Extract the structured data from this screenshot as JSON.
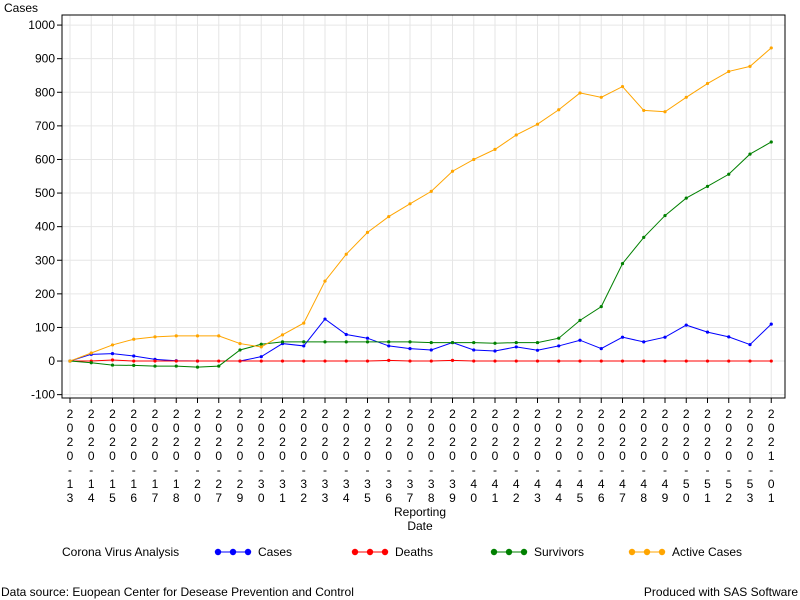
{
  "footer": {
    "source": "Data source: Euopean Center for Desease Prevention and Control",
    "produced": "Produced with SAS Software"
  },
  "chart_data": {
    "type": "line",
    "ylabel": "Cases",
    "xlabel": "Reporting Date",
    "ylim": [
      -100,
      1000
    ],
    "yticks": [
      -100,
      0,
      100,
      200,
      300,
      400,
      500,
      600,
      700,
      800,
      900,
      1000
    ],
    "grid": true,
    "legend_title": "Corona Virus Analysis",
    "legend_position": "bottom",
    "categories": [
      "2020-1-13",
      "2020-1-14",
      "2020-1-15",
      "2020-1-16",
      "2020-1-17",
      "2020-1-18",
      "2020-2-0",
      "2020-2-7",
      "2020-2-9",
      "2020-3-0",
      "2020-3-1",
      "2020-3-2",
      "2020-3-3",
      "2020-3-4",
      "2020-3-5",
      "2020-3-6",
      "2020-3-7",
      "2020-3-8",
      "2020-3-9",
      "2020-4-0",
      "2020-4-1",
      "2020-4-2",
      "2020-4-3",
      "2020-4-4",
      "2020-4-5",
      "2020-4-6",
      "2020-4-7",
      "2020-4-8",
      "2020-4-9",
      "2020-5-0",
      "2020-5-1",
      "2020-5-2",
      "2020-5-3",
      "2021-0-1"
    ],
    "tick_rows": [
      [
        "2",
        "2",
        "2",
        "2",
        "2",
        "2",
        "2",
        "2",
        "2",
        "2",
        "2",
        "2",
        "2",
        "2",
        "2",
        "2",
        "2",
        "2",
        "2",
        "2",
        "2",
        "2",
        "2",
        "2",
        "2",
        "2",
        "2",
        "2",
        "2",
        "2",
        "2",
        "2",
        "2",
        "2"
      ],
      [
        "0",
        "0",
        "0",
        "0",
        "0",
        "0",
        "0",
        "0",
        "0",
        "0",
        "0",
        "0",
        "0",
        "0",
        "0",
        "0",
        "0",
        "0",
        "0",
        "0",
        "0",
        "0",
        "0",
        "0",
        "0",
        "0",
        "0",
        "0",
        "0",
        "0",
        "0",
        "0",
        "0",
        "0"
      ],
      [
        "2",
        "2",
        "2",
        "2",
        "2",
        "2",
        "2",
        "2",
        "2",
        "2",
        "2",
        "2",
        "2",
        "2",
        "2",
        "2",
        "2",
        "2",
        "2",
        "2",
        "2",
        "2",
        "2",
        "2",
        "2",
        "2",
        "2",
        "2",
        "2",
        "2",
        "2",
        "2",
        "2",
        "2"
      ],
      [
        "0",
        "0",
        "0",
        "0",
        "0",
        "0",
        "0",
        "0",
        "0",
        "0",
        "0",
        "0",
        "0",
        "0",
        "0",
        "0",
        "0",
        "0",
        "0",
        "0",
        "0",
        "0",
        "0",
        "0",
        "0",
        "0",
        "0",
        "0",
        "0",
        "0",
        "0",
        "0",
        "0",
        "1"
      ],
      [
        "-",
        "-",
        "-",
        "-",
        "-",
        "-",
        "-",
        "-",
        "-",
        "-",
        "-",
        "-",
        "-",
        "-",
        "-",
        "-",
        "-",
        "-",
        "-",
        "-",
        "-",
        "-",
        "-",
        "-",
        "-",
        "-",
        "-",
        "-",
        "-",
        "-",
        "-",
        "-",
        "-",
        "-"
      ],
      [
        "1",
        "1",
        "1",
        "1",
        "1",
        "1",
        "2",
        "2",
        "2",
        "3",
        "3",
        "3",
        "3",
        "3",
        "3",
        "3",
        "3",
        "3",
        "3",
        "4",
        "4",
        "4",
        "4",
        "4",
        "4",
        "4",
        "4",
        "4",
        "4",
        "5",
        "5",
        "5",
        "5",
        "0"
      ],
      [
        "3",
        "4",
        "5",
        "6",
        "7",
        "8",
        "0",
        "7",
        "9",
        "0",
        "1",
        "2",
        "3",
        "4",
        "5",
        "6",
        "7",
        "8",
        "9",
        "0",
        "1",
        "2",
        "3",
        "4",
        "5",
        "6",
        "7",
        "8",
        "9",
        "0",
        "1",
        "2",
        "3",
        "1"
      ]
    ],
    "series": [
      {
        "name": "Cases",
        "color": "#0000ff",
        "values": [
          0,
          20,
          22,
          15,
          5,
          1,
          0,
          null,
          0,
          13,
          52,
          45,
          125,
          79,
          68,
          45,
          37,
          33,
          55,
          33,
          30,
          42,
          32,
          45,
          62,
          37,
          71,
          57,
          71,
          107,
          86,
          72,
          49,
          110
        ]
      },
      {
        "name": "Deaths",
        "color": "#ff0000",
        "values": [
          0,
          0,
          3,
          0,
          0,
          0,
          0,
          0,
          0,
          0,
          0,
          0,
          0,
          0,
          0,
          2,
          0,
          0,
          2,
          0,
          0,
          0,
          0,
          0,
          0,
          0,
          0,
          0,
          0,
          0,
          0,
          0,
          0,
          0
        ]
      },
      {
        "name": "Survivors",
        "color": "#008000",
        "values": [
          0,
          -5,
          -12,
          -13,
          -15,
          -15,
          -18,
          -15,
          33,
          50,
          57,
          57,
          57,
          57,
          57,
          57,
          57,
          55,
          55,
          55,
          53,
          55,
          55,
          68,
          121,
          162,
          290,
          368,
          433,
          485,
          520,
          556,
          616,
          652
        ]
      },
      {
        "name": "Active Cases",
        "color": "#ffa500",
        "values": [
          0,
          24,
          48,
          65,
          72,
          75,
          75,
          75,
          52,
          42,
          78,
          113,
          238,
          318,
          383,
          430,
          468,
          505,
          565,
          600,
          630,
          673,
          705,
          748,
          798,
          785,
          817,
          746,
          742,
          785,
          826,
          862,
          877,
          932
        ]
      }
    ]
  }
}
